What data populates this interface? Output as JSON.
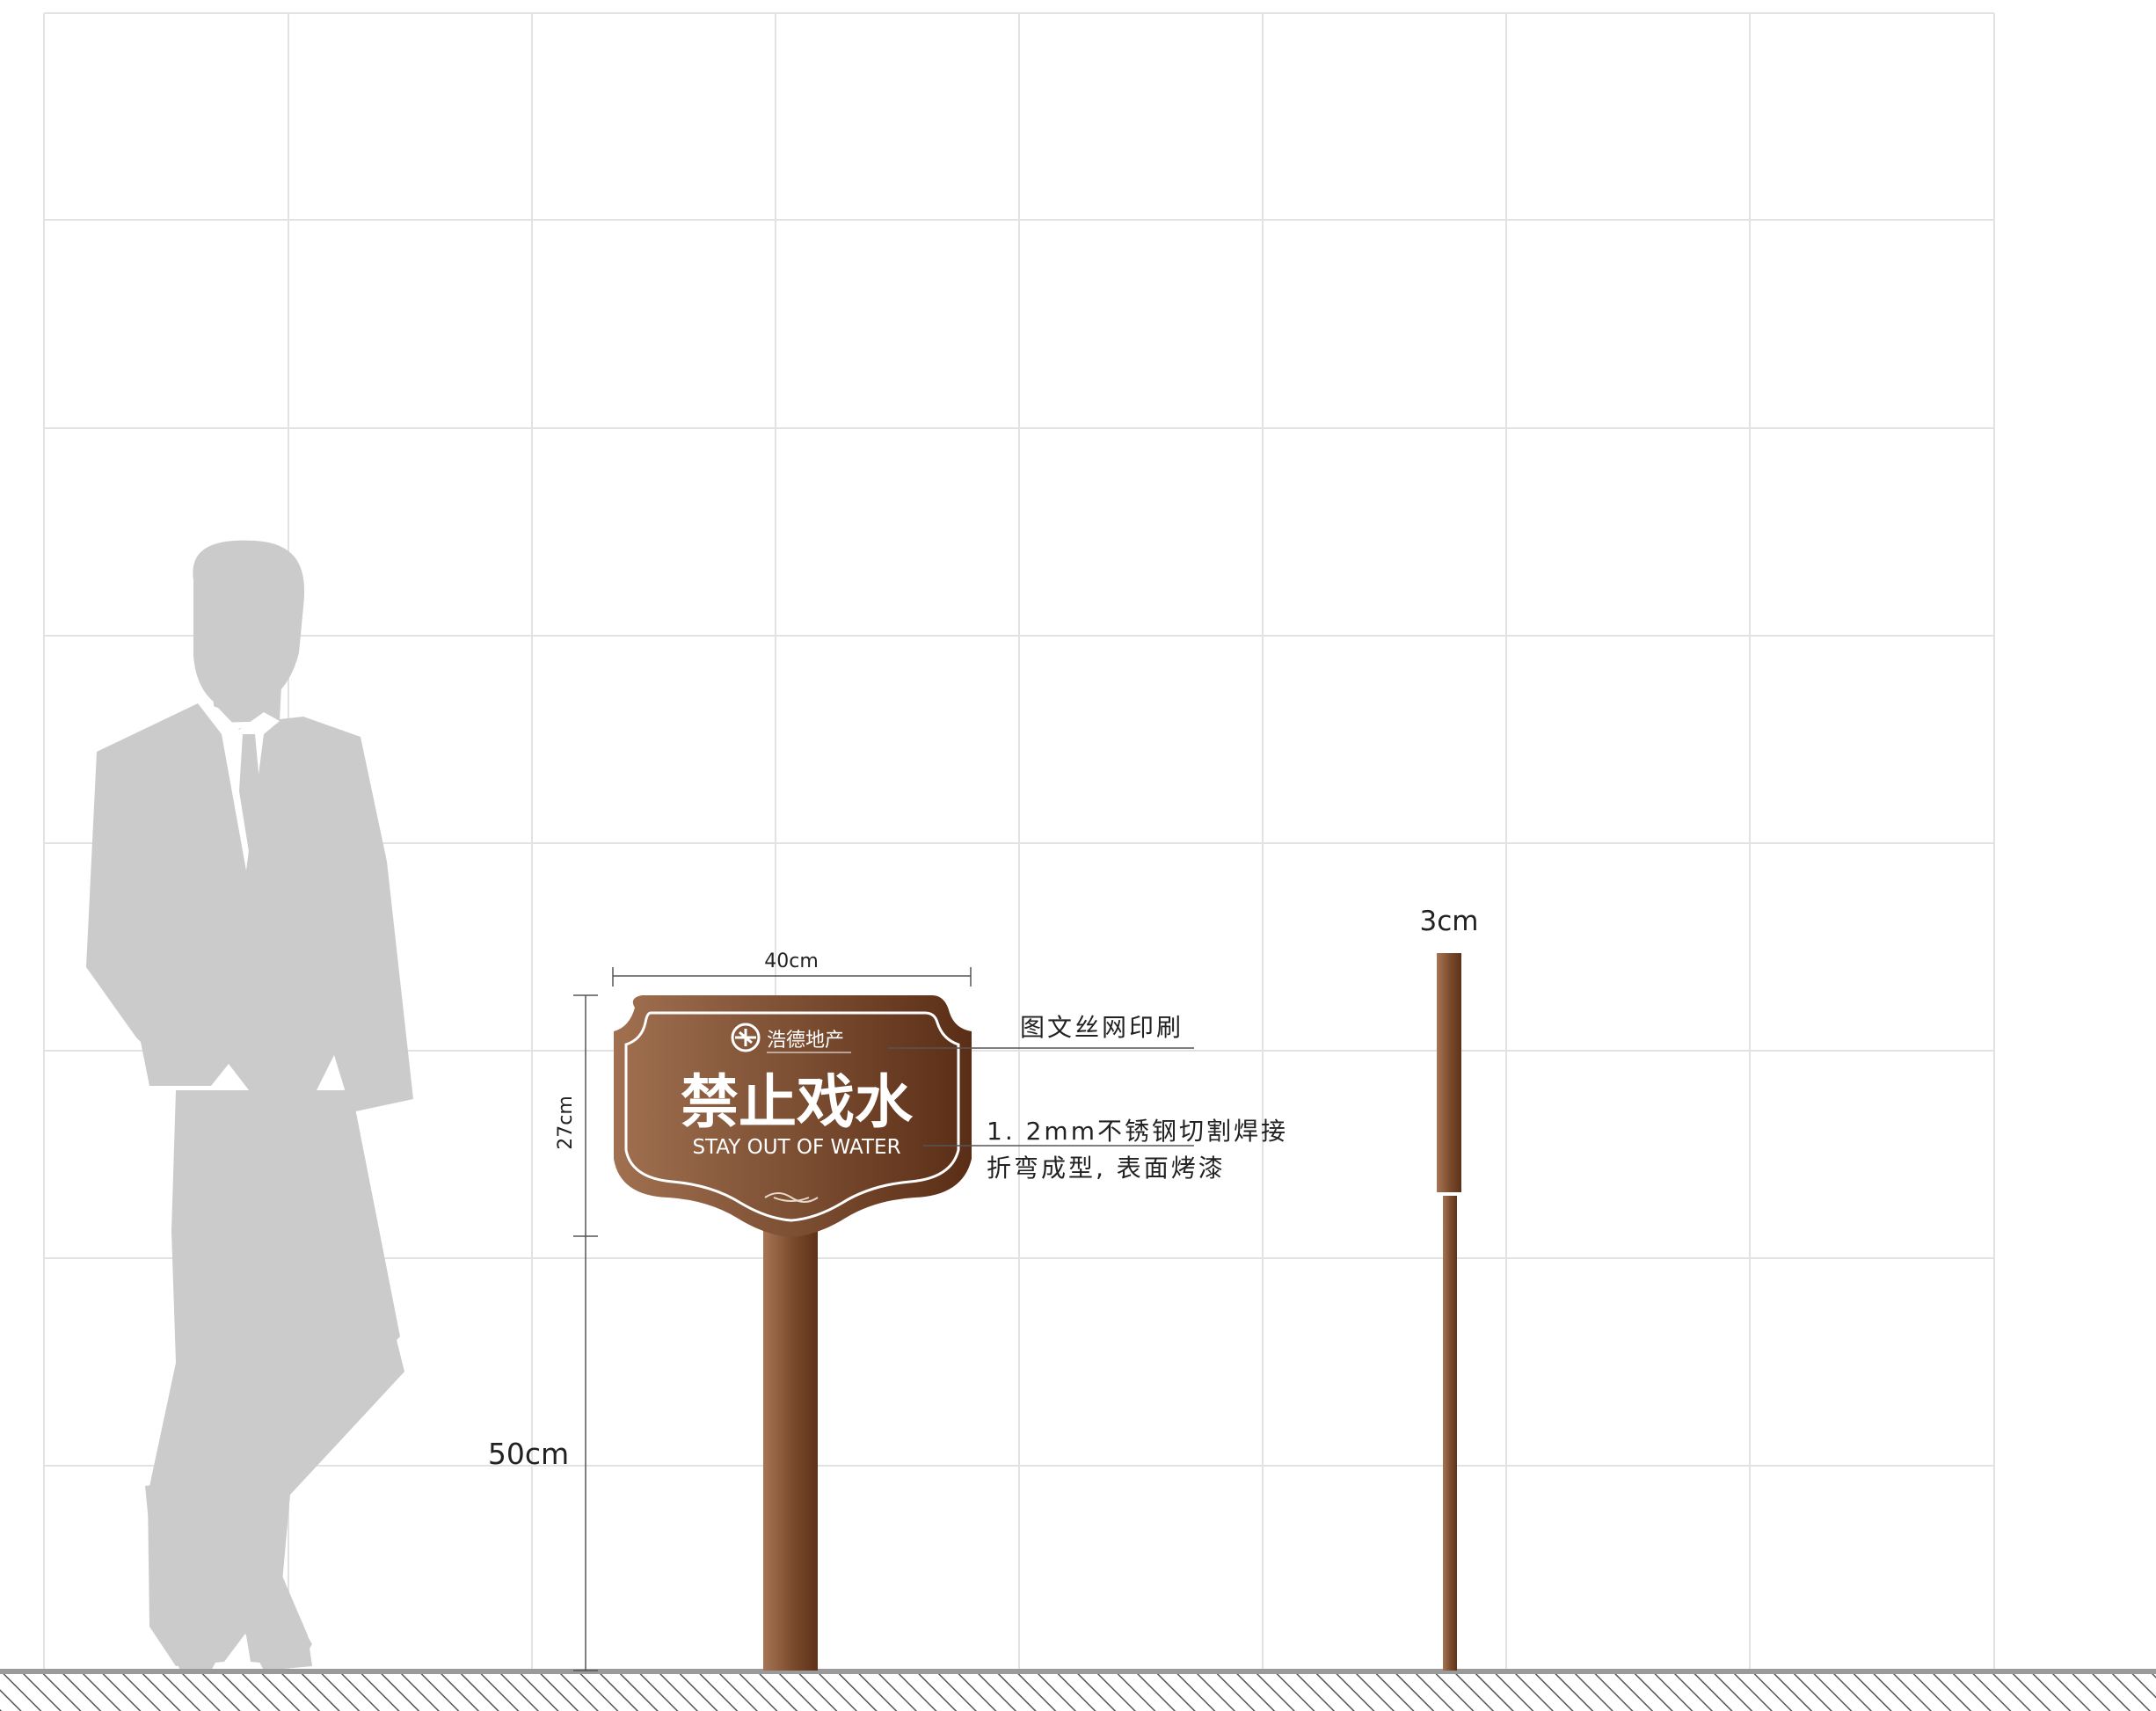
{
  "sign": {
    "brand": "浩德地产",
    "title": "禁止戏水",
    "subtitle": "STAY OUT OF WATER",
    "panel_color_light": "#9a6a4a",
    "panel_color_dark": "#5a2e16",
    "post_color": "#7a4a2c"
  },
  "dimensions": {
    "width": "40cm",
    "panel_height": "27cm",
    "post_height": "50cm",
    "post_diameter": "3cm"
  },
  "annotations": {
    "printing": "图文丝网印刷",
    "material_line1": "1. 2mm不锈钢切割焊接",
    "material_line2": "折弯成型, 表面烤漆"
  },
  "figure": {
    "silhouette": "person-silhouette",
    "silhouette_color": "#cbcbcb"
  },
  "grid": {
    "line_color": "#e2e2e2"
  }
}
